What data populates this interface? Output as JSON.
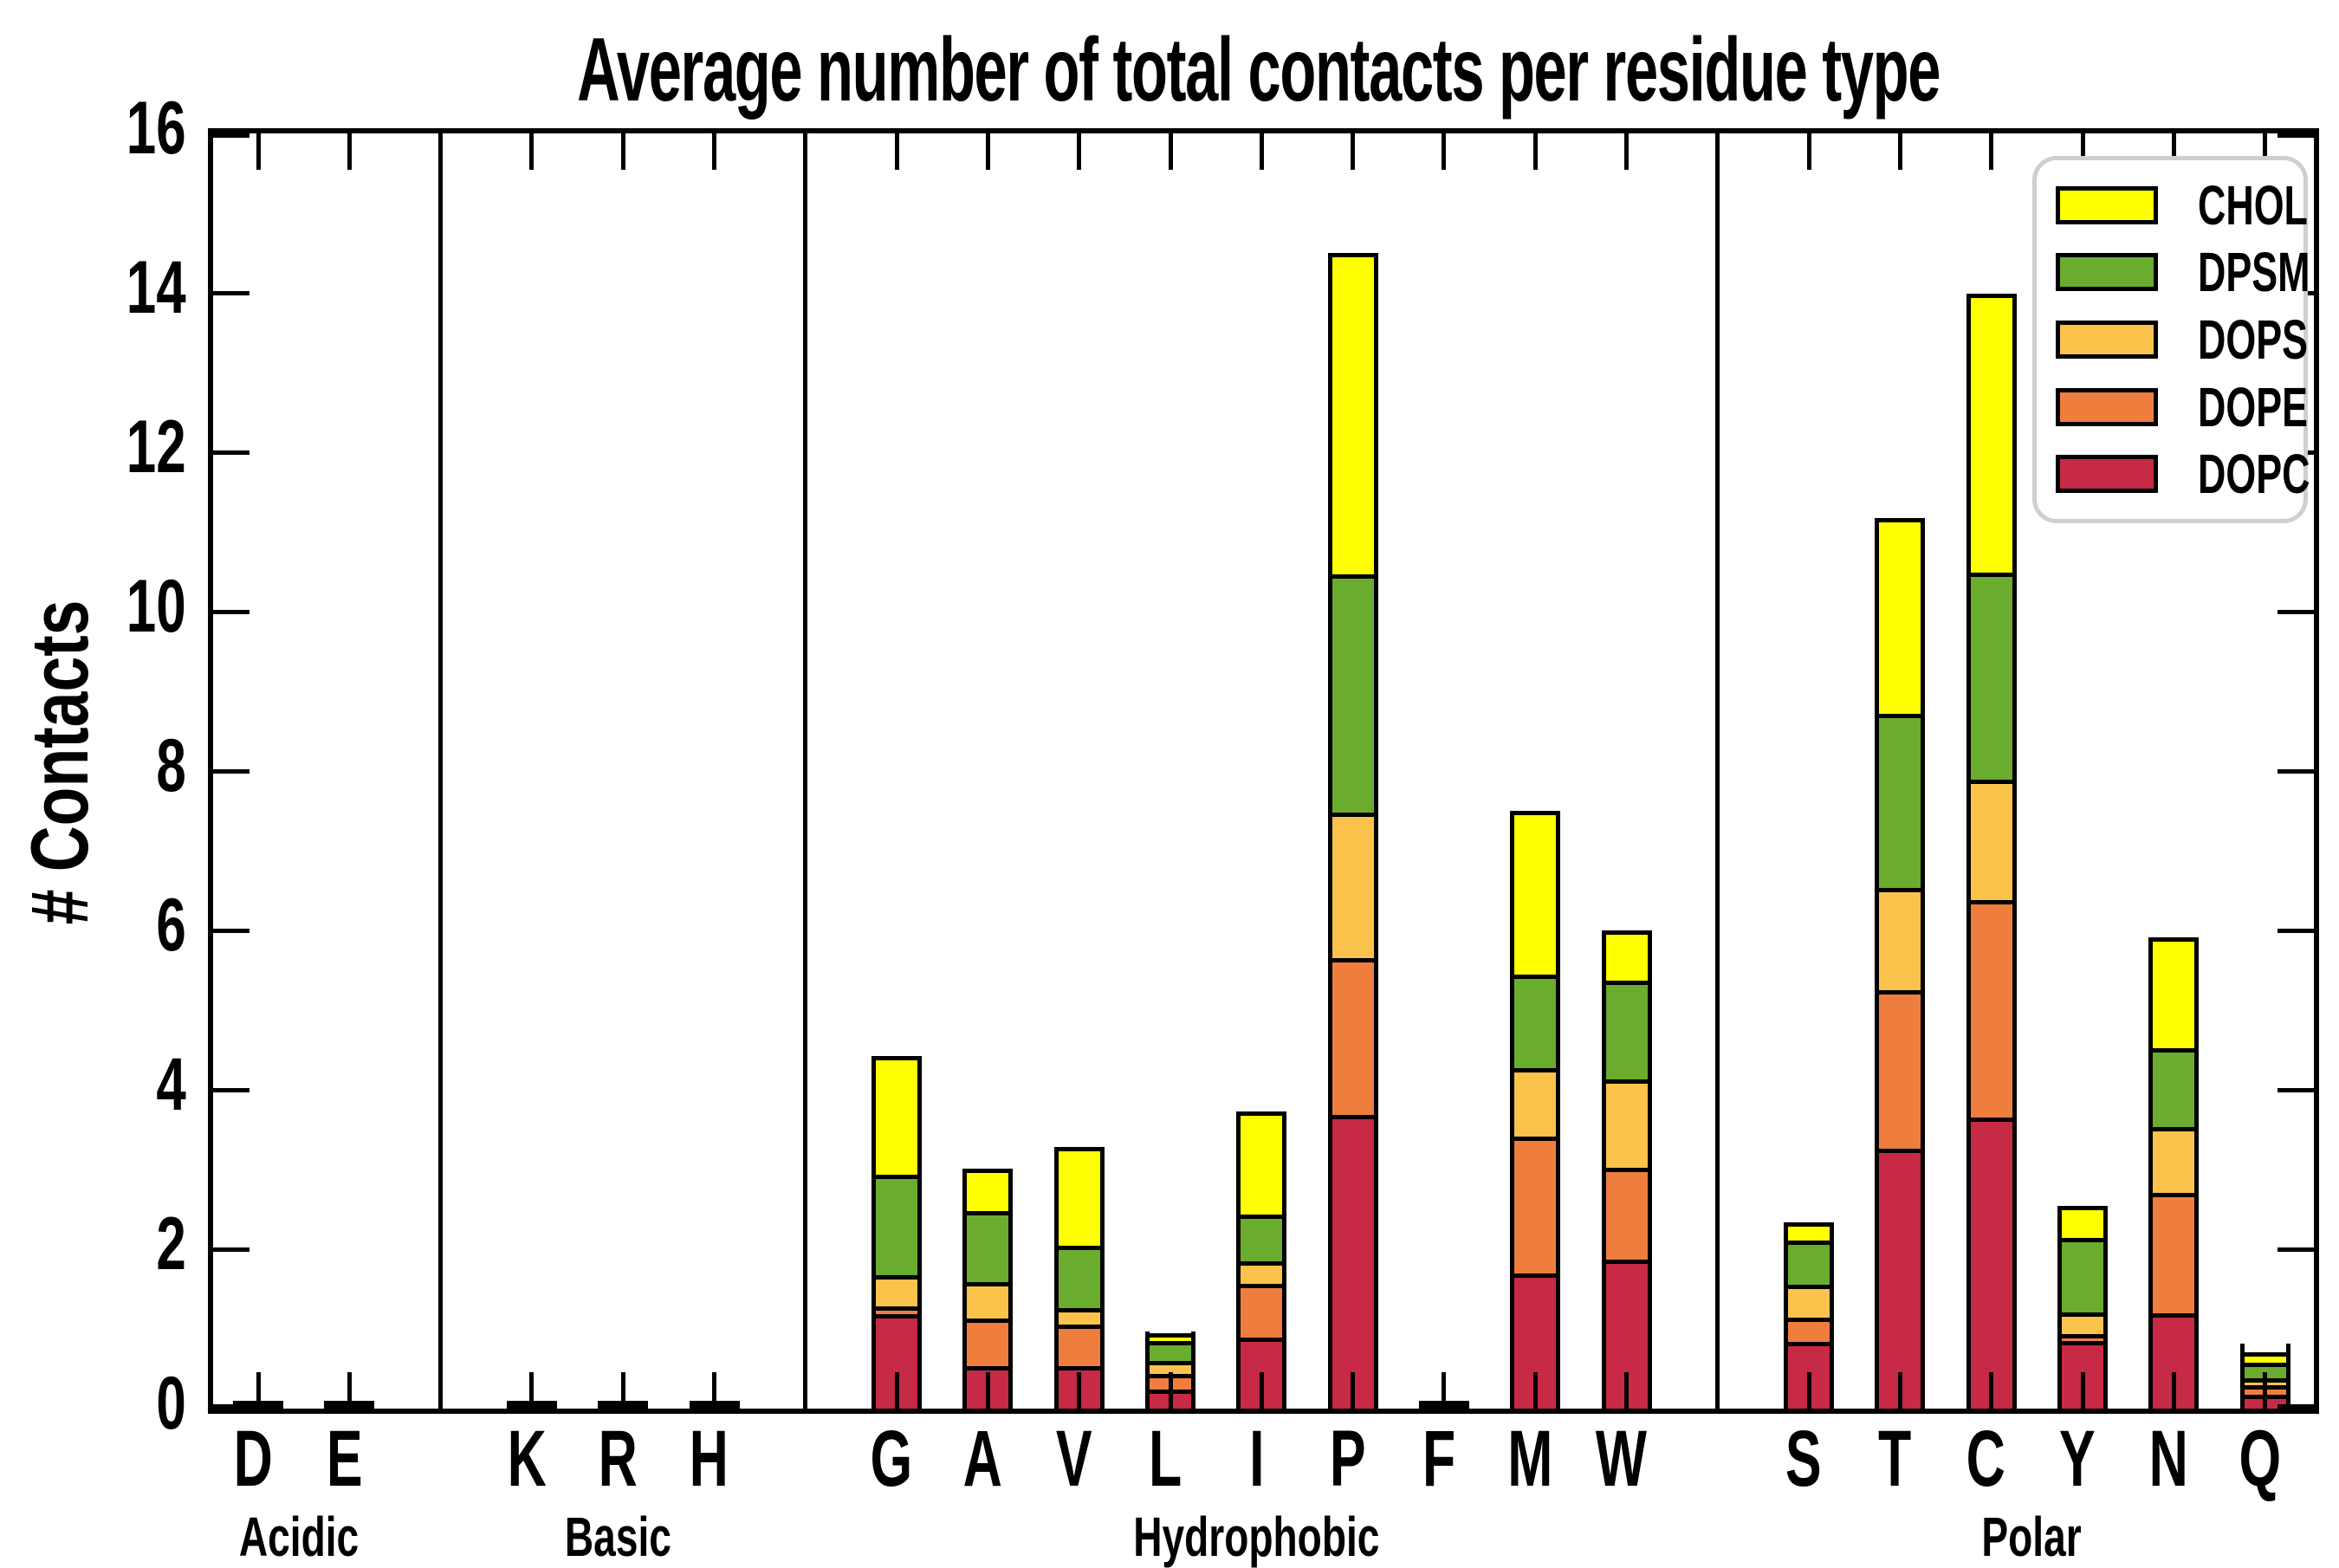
{
  "title": "Average number of total contacts per residue type",
  "y_axis": {
    "label": "# Contacts",
    "tick_labels": [
      "0",
      "2",
      "4",
      "6",
      "8",
      "10",
      "12",
      "14",
      "16"
    ],
    "min": 0,
    "max": 16
  },
  "legend": {
    "entries": [
      {
        "label": "CHOL",
        "color": "#FFFF00"
      },
      {
        "label": "DPSM",
        "color": "#6AAC2D"
      },
      {
        "label": "DOPS",
        "color": "#FBC34C"
      },
      {
        "label": "DOPE",
        "color": "#EF7E3E"
      },
      {
        "label": "DOPC",
        "color": "#C62A45"
      }
    ]
  },
  "groups": [
    {
      "label": "Acidic",
      "residues": [
        "D",
        "E"
      ]
    },
    {
      "label": "Basic",
      "residues": [
        "K",
        "R",
        "H"
      ]
    },
    {
      "label": "Hydrophobic",
      "residues": [
        "G",
        "A",
        "V",
        "L",
        "I",
        "P",
        "F",
        "M",
        "W"
      ]
    },
    {
      "label": "Polar",
      "residues": [
        "S",
        "T",
        "C",
        "Y",
        "N",
        "Q"
      ]
    }
  ],
  "chart_data": {
    "type": "bar",
    "stacked": true,
    "title": "Average number of total contacts per residue type",
    "xlabel": "",
    "ylabel": "# Contacts",
    "ylim": [
      0,
      16
    ],
    "grid": false,
    "legend_position": "upper right",
    "categories": [
      "D",
      "E",
      "K",
      "R",
      "H",
      "G",
      "A",
      "V",
      "L",
      "I",
      "P",
      "F",
      "M",
      "W",
      "S",
      "T",
      "C",
      "Y",
      "N",
      "Q"
    ],
    "category_groups": [
      "Acidic",
      "Acidic",
      "Basic",
      "Basic",
      "Basic",
      "Hydrophobic",
      "Hydrophobic",
      "Hydrophobic",
      "Hydrophobic",
      "Hydrophobic",
      "Hydrophobic",
      "Hydrophobic",
      "Hydrophobic",
      "Hydrophobic",
      "Polar",
      "Polar",
      "Polar",
      "Polar",
      "Polar",
      "Polar"
    ],
    "series": [
      {
        "name": "DOPC",
        "color": "#C62A45",
        "values": [
          0.01,
          0.01,
          0.01,
          0.01,
          0.01,
          1.2,
          0.53,
          0.52,
          0.27,
          0.9,
          3.7,
          0.01,
          1.7,
          1.9,
          0.89,
          3.29,
          3.67,
          0.89,
          1.2,
          0.22
        ]
      },
      {
        "name": "DOPE",
        "color": "#EF7E3E",
        "values": [
          0.01,
          0.01,
          0.01,
          0.01,
          0.01,
          0.05,
          0.59,
          0.51,
          0.19,
          0.67,
          1.95,
          0.01,
          1.73,
          1.15,
          0.28,
          1.98,
          2.73,
          0.04,
          1.52,
          0.13
        ]
      },
      {
        "name": "DOPS",
        "color": "#FBC34C",
        "values": [
          0.005,
          0.005,
          0.005,
          0.005,
          0.005,
          0.36,
          0.45,
          0.17,
          0.16,
          0.25,
          1.8,
          0.005,
          0.83,
          1.1,
          0.4,
          1.26,
          1.48,
          0.24,
          0.81,
          0.06
        ]
      },
      {
        "name": "DPSM",
        "color": "#6AAC2D",
        "values": [
          0.005,
          0.005,
          0.005,
          0.005,
          0.005,
          1.29,
          0.92,
          0.79,
          0.29,
          0.57,
          3.0,
          0.005,
          1.17,
          1.25,
          0.57,
          2.18,
          2.59,
          0.99,
          0.98,
          0.26
        ]
      },
      {
        "name": "CHOL",
        "color": "#FFFF00",
        "values": [
          0.005,
          0.005,
          0.005,
          0.005,
          0.005,
          1.52,
          0.52,
          1.29,
          0.06,
          1.34,
          4.05,
          0.005,
          2.07,
          0.6,
          0.2,
          2.46,
          3.52,
          0.38,
          1.4,
          0.14
        ]
      }
    ],
    "totals": [
      0.035,
      0.035,
      0.035,
      0.035,
      0.035,
      4.42,
      3.01,
      3.28,
      0.97,
      3.73,
      14.5,
      0.035,
      7.5,
      6.0,
      2.34,
      11.17,
      13.99,
      2.54,
      5.91,
      0.81
    ]
  }
}
